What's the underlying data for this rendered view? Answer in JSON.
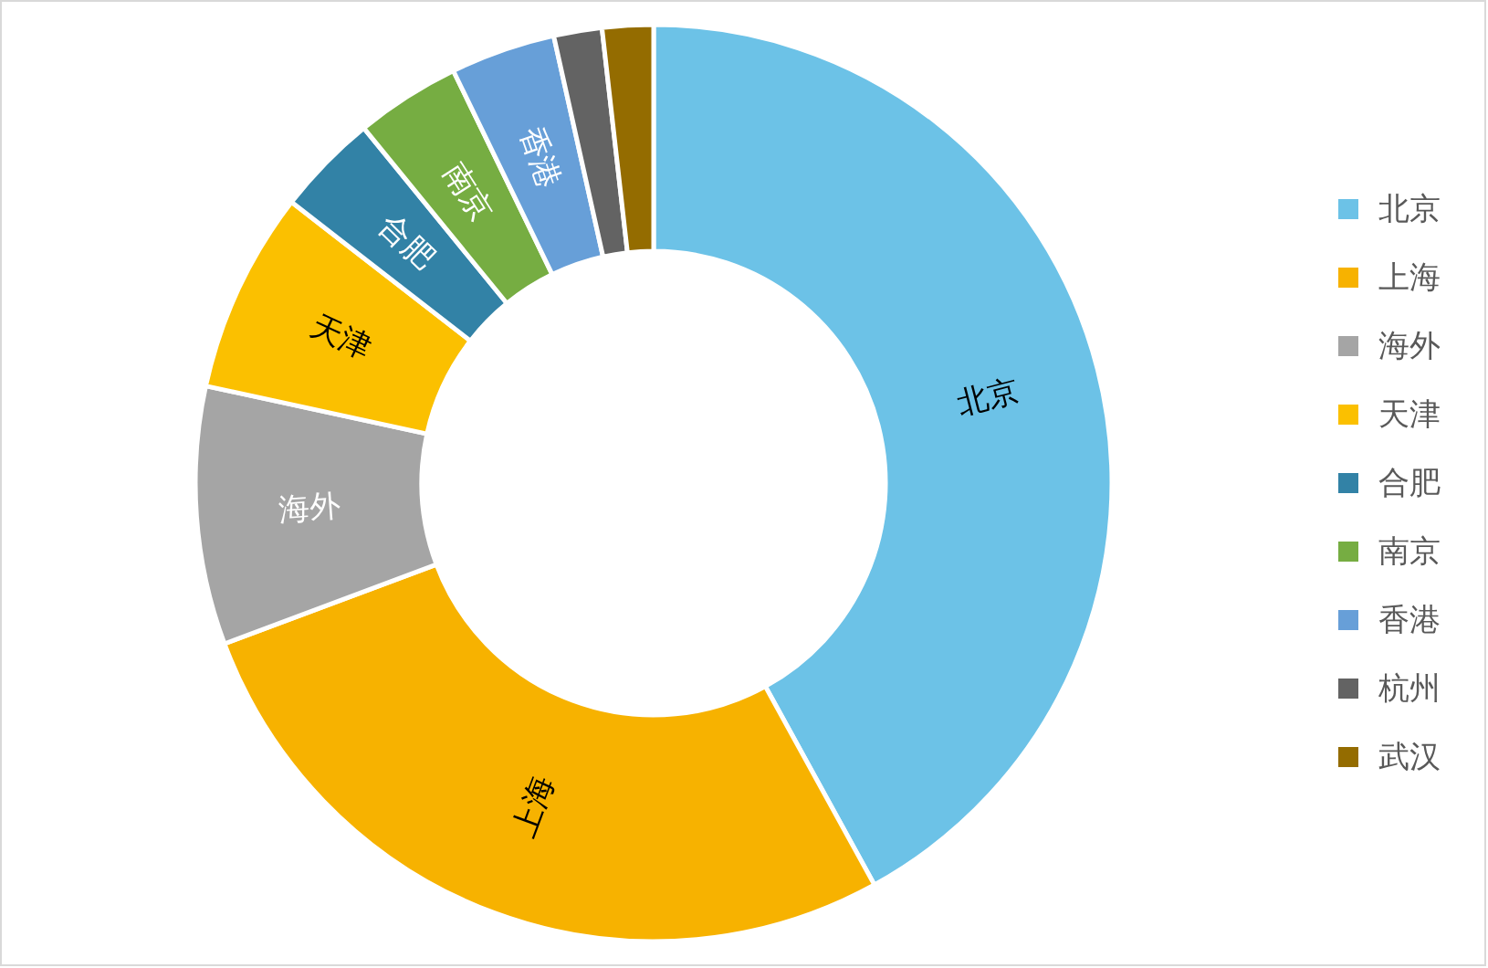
{
  "chart_data": {
    "type": "donut",
    "categories": [
      "北京",
      "上海",
      "海外",
      "天津",
      "合肥",
      "南京",
      "香港",
      "杭州",
      "武汉"
    ],
    "values": [
      42.0,
      27.3,
      9.1,
      7.1,
      3.6,
      3.7,
      3.7,
      1.7,
      1.8
    ],
    "colors": [
      "#6cc2e7",
      "#f7b200",
      "#a5a5a5",
      "#fbc000",
      "#3282a6",
      "#76ad42",
      "#679fd8",
      "#636363",
      "#946c00"
    ],
    "legend": "right"
  }
}
